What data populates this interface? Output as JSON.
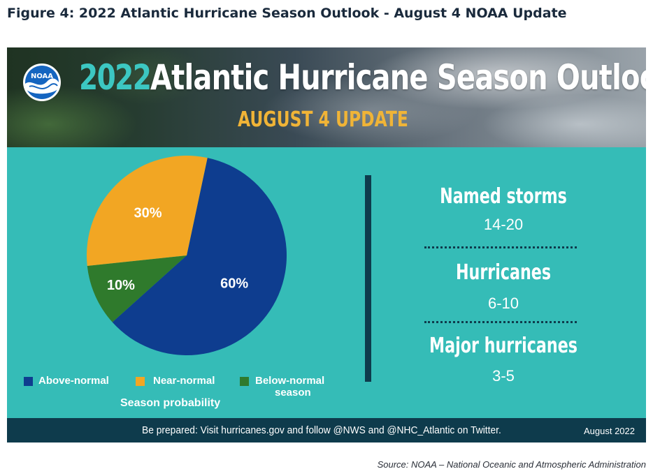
{
  "figure_title": "Figure 4: 2022 Atlantic Hurricane Season Outlook - August 4 NOAA Update",
  "banner": {
    "logo_text": "NOAA",
    "year": "2022",
    "title": "Atlantic Hurricane Season Outlook",
    "subtitle": "AUGUST 4 UPDATE"
  },
  "colors": {
    "above": "#0e3d8f",
    "near": "#f2a623",
    "below": "#2f7a2c",
    "background": "#35bcb7",
    "dark": "#0e3b4c"
  },
  "chart_data": {
    "type": "pie",
    "title": "",
    "legend_title": "Season probability",
    "slices": [
      {
        "name": "Above-normal",
        "value": 60,
        "label": "60%",
        "color": "#0e3d8f"
      },
      {
        "name": "Below-normal season",
        "value": 10,
        "label": "10%",
        "color": "#2f7a2c"
      },
      {
        "name": "Near-normal",
        "value": 30,
        "label": "30%",
        "color": "#f2a623"
      }
    ],
    "legend_placement": "bottom"
  },
  "legend": {
    "above_label": "Above-normal",
    "near_label": "Near-normal",
    "below_label_line1": "Below-normal",
    "below_label_line2": "season",
    "caption": "Season probability"
  },
  "stats": [
    {
      "label": "Named storms",
      "value": "14-20"
    },
    {
      "label": "Hurricanes",
      "value": "6-10"
    },
    {
      "label": "Major hurricanes",
      "value": "3-5"
    }
  ],
  "footer": {
    "text": "Be prepared: Visit hurricanes.gov and follow @NWS and @NHC_Atlantic on Twitter.",
    "date": "August 2022"
  },
  "source": "Source: NOAA – National Oceanic and Atmospheric Administration"
}
